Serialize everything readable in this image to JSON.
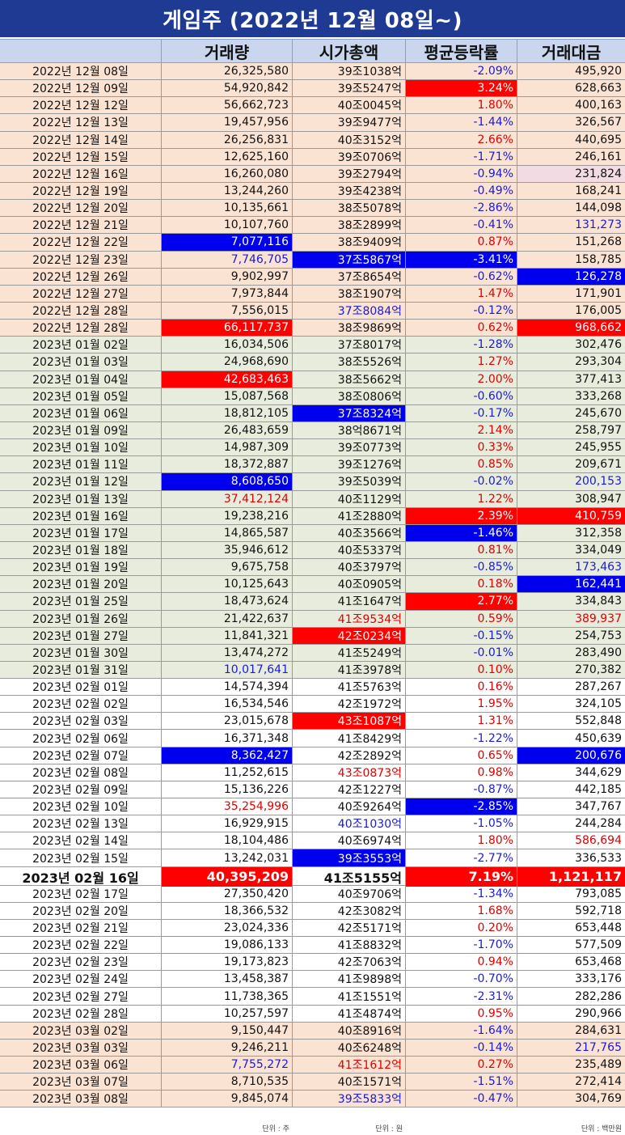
{
  "title": "게임주 (2022년 12월 08일~)",
  "headers": [
    "",
    "거래량",
    "시가총액",
    "평균등락률",
    "거래대금"
  ],
  "footer": [
    "",
    "단위 : 주",
    "단위 : 원",
    "",
    "단위 : 백만원"
  ],
  "rows": [
    {
      "date": "2022년 12월 08일",
      "vol": "26,325,580",
      "cap": "39조1038억",
      "rate": "-2.09%",
      "amt": "495,920",
      "group": "g1",
      "rate_style": "t-blue"
    },
    {
      "date": "2022년 12월 09일",
      "vol": "54,920,842",
      "cap": "39조5247억",
      "rate": "3.24%",
      "amt": "628,663",
      "group": "g1",
      "rate_style": "hl-red"
    },
    {
      "date": "2022년 12월 12일",
      "vol": "56,662,723",
      "cap": "40조0045억",
      "rate": "1.80%",
      "amt": "400,163",
      "group": "g1",
      "rate_style": "t-red"
    },
    {
      "date": "2022년 12월 13일",
      "vol": "19,457,956",
      "cap": "39조9477억",
      "rate": "-1.44%",
      "amt": "326,567",
      "group": "g1",
      "rate_style": "t-blue"
    },
    {
      "date": "2022년 12월 14일",
      "vol": "26,256,831",
      "cap": "40조3152억",
      "rate": "2.66%",
      "amt": "440,695",
      "group": "g1",
      "rate_style": "t-red"
    },
    {
      "date": "2022년 12월 15일",
      "vol": "12,625,160",
      "cap": "39조0706억",
      "rate": "-1.71%",
      "amt": "246,161",
      "group": "g1",
      "rate_style": "t-blue"
    },
    {
      "date": "2022년 12월 16일",
      "vol": "16,260,080",
      "cap": "39조2794억",
      "rate": "-0.94%",
      "amt": "231,824",
      "group": "g1",
      "rate_style": "t-blue",
      "amt_style": "hl-pink"
    },
    {
      "date": "2022년 12월 19일",
      "vol": "13,244,260",
      "cap": "39조4238억",
      "rate": "-0.49%",
      "amt": "168,241",
      "group": "g1",
      "rate_style": "t-blue"
    },
    {
      "date": "2022년 12월 20일",
      "vol": "10,135,661",
      "cap": "38조5078억",
      "rate": "-2.86%",
      "amt": "144,098",
      "group": "g1",
      "rate_style": "t-blue"
    },
    {
      "date": "2022년 12월 21일",
      "vol": "10,107,760",
      "cap": "38조2899억",
      "rate": "-0.41%",
      "amt": "131,273",
      "group": "g1",
      "rate_style": "t-blue",
      "amt_style": "t-blue"
    },
    {
      "date": "2022년 12월 22일",
      "vol": "7,077,116",
      "cap": "38조9409억",
      "rate": "0.87%",
      "amt": "151,268",
      "group": "g1",
      "rate_style": "t-red",
      "vol_style": "hl-blue"
    },
    {
      "date": "2022년 12월 23일",
      "vol": "7,746,705",
      "cap": "37조5867억",
      "rate": "-3.41%",
      "amt": "158,785",
      "group": "g1",
      "rate_style": "hl-blue",
      "vol_style": "t-blue",
      "cap_style": "hl-blue"
    },
    {
      "date": "2022년 12월 26일",
      "vol": "9,902,997",
      "cap": "37조8654억",
      "rate": "-0.62%",
      "amt": "126,278",
      "group": "g1",
      "rate_style": "t-blue",
      "amt_style": "hl-blue"
    },
    {
      "date": "2022년 12월 27일",
      "vol": "7,973,844",
      "cap": "38조1907억",
      "rate": "1.47%",
      "amt": "171,901",
      "group": "g1",
      "rate_style": "t-red"
    },
    {
      "date": "2022년 12월 28일",
      "vol": "7,556,015",
      "cap": "37조8084억",
      "rate": "-0.12%",
      "amt": "176,005",
      "group": "g1",
      "rate_style": "t-blue",
      "cap_style": "t-blue"
    },
    {
      "date": "2022년 12월 28일",
      "vol": "66,117,737",
      "cap": "38조9869억",
      "rate": "0.62%",
      "amt": "968,662",
      "group": "g1",
      "rate_style": "t-red",
      "vol_style": "hl-red",
      "amt_style": "hl-red"
    },
    {
      "date": "2023년 01월 02일",
      "vol": "16,034,506",
      "cap": "37조8017억",
      "rate": "-1.28%",
      "amt": "302,476",
      "group": "g2",
      "rate_style": "t-blue"
    },
    {
      "date": "2023년 01월 03일",
      "vol": "24,968,690",
      "cap": "38조5526억",
      "rate": "1.27%",
      "amt": "293,304",
      "group": "g2",
      "rate_style": "t-red"
    },
    {
      "date": "2023년 01월 04일",
      "vol": "42,683,463",
      "cap": "38조5662억",
      "rate": "2.00%",
      "amt": "377,413",
      "group": "g2",
      "rate_style": "t-red",
      "vol_style": "hl-red"
    },
    {
      "date": "2023년 01월 05일",
      "vol": "15,087,568",
      "cap": "38조0806억",
      "rate": "-0.60%",
      "amt": "333,268",
      "group": "g2",
      "rate_style": "t-blue"
    },
    {
      "date": "2023년 01월 06일",
      "vol": "18,812,105",
      "cap": "37조8324억",
      "rate": "-0.17%",
      "amt": "245,670",
      "group": "g2",
      "rate_style": "t-blue",
      "cap_style": "hl-blue"
    },
    {
      "date": "2023년 01월 09일",
      "vol": "26,483,659",
      "cap": "38억8671억",
      "rate": "2.14%",
      "amt": "258,797",
      "group": "g2",
      "rate_style": "t-red"
    },
    {
      "date": "2023년 01월 10일",
      "vol": "14,987,309",
      "cap": "39조0773억",
      "rate": "0.33%",
      "amt": "245,955",
      "group": "g2",
      "rate_style": "t-red"
    },
    {
      "date": "2023년 01월 11일",
      "vol": "18,372,887",
      "cap": "39조1276억",
      "rate": "0.85%",
      "amt": "209,671",
      "group": "g2",
      "rate_style": "t-red"
    },
    {
      "date": "2023년 01월 12일",
      "vol": "8,608,650",
      "cap": "39조5039억",
      "rate": "-0.02%",
      "amt": "200,153",
      "group": "g2",
      "rate_style": "t-blue",
      "vol_style": "hl-blue",
      "amt_style": "t-blue"
    },
    {
      "date": "2023년 01월 13일",
      "vol": "37,412,124",
      "cap": "40조1129억",
      "rate": "1.22%",
      "amt": "308,947",
      "group": "g2",
      "rate_style": "t-red",
      "vol_style": "t-red"
    },
    {
      "date": "2023년 01월 16일",
      "vol": "19,238,216",
      "cap": "41조2880억",
      "rate": "2.39%",
      "amt": "410,759",
      "group": "g2",
      "rate_style": "hl-red",
      "amt_style": "hl-red"
    },
    {
      "date": "2023년 01월 17일",
      "vol": "14,865,587",
      "cap": "40조3566억",
      "rate": "-1.46%",
      "amt": "312,358",
      "group": "g2",
      "rate_style": "hl-blue"
    },
    {
      "date": "2023년 01월 18일",
      "vol": "35,946,612",
      "cap": "40조5337억",
      "rate": "0.81%",
      "amt": "334,049",
      "group": "g2",
      "rate_style": "t-red"
    },
    {
      "date": "2023년 01월 19일",
      "vol": "9,675,758",
      "cap": "40조3797억",
      "rate": "-0.85%",
      "amt": "173,463",
      "group": "g2",
      "rate_style": "t-blue",
      "amt_style": "t-blue"
    },
    {
      "date": "2023년 01월 20일",
      "vol": "10,125,643",
      "cap": "40조0905억",
      "rate": "0.18%",
      "amt": "162,441",
      "group": "g2",
      "rate_style": "t-red",
      "amt_style": "hl-blue"
    },
    {
      "date": "2023년 01월 25일",
      "vol": "18,473,624",
      "cap": "41조1647억",
      "rate": "2.77%",
      "amt": "334,843",
      "group": "g2",
      "rate_style": "hl-red"
    },
    {
      "date": "2023년 01월 26일",
      "vol": "21,422,637",
      "cap": "41조9534억",
      "rate": "0.59%",
      "amt": "389,937",
      "group": "g2",
      "rate_style": "t-red",
      "cap_style": "t-red",
      "amt_style": "t-red"
    },
    {
      "date": "2023년 01월 27일",
      "vol": "11,841,321",
      "cap": "42조0234억",
      "rate": "-0.15%",
      "amt": "254,753",
      "group": "g2",
      "rate_style": "t-blue",
      "cap_style": "hl-red"
    },
    {
      "date": "2023년 01월 30일",
      "vol": "13,474,272",
      "cap": "41조5249억",
      "rate": "-0.01%",
      "amt": "283,490",
      "group": "g2",
      "rate_style": "t-blue"
    },
    {
      "date": "2023년 01월 31일",
      "vol": "10,017,641",
      "cap": "41조3978억",
      "rate": "0.10%",
      "amt": "270,382",
      "group": "g2",
      "rate_style": "t-red",
      "vol_style": "t-blue"
    },
    {
      "date": "2023년 02월 01일",
      "vol": "14,574,394",
      "cap": "41조5763억",
      "rate": "0.16%",
      "amt": "287,267",
      "group": "g3",
      "rate_style": "t-red"
    },
    {
      "date": "2023년 02월 02일",
      "vol": "16,534,546",
      "cap": "42조1972억",
      "rate": "1.95%",
      "amt": "324,105",
      "group": "g3",
      "rate_style": "t-red"
    },
    {
      "date": "2023년 02월 03일",
      "vol": "23,015,678",
      "cap": "43조1087억",
      "rate": "1.31%",
      "amt": "552,848",
      "group": "g3",
      "rate_style": "t-red",
      "cap_style": "hl-red"
    },
    {
      "date": "2023년 02월 06일",
      "vol": "16,371,348",
      "cap": "41조8429억",
      "rate": "-1.22%",
      "amt": "450,639",
      "group": "g3",
      "rate_style": "t-blue"
    },
    {
      "date": "2023년 02월 07일",
      "vol": "8,362,427",
      "cap": "42조2892억",
      "rate": "0.65%",
      "amt": "200,676",
      "group": "g3",
      "rate_style": "t-red",
      "vol_style": "hl-blue",
      "amt_style": "hl-blue"
    },
    {
      "date": "2023년 02월 08일",
      "vol": "11,252,615",
      "cap": "43조0873억",
      "rate": "0.98%",
      "amt": "344,629",
      "group": "g3",
      "rate_style": "t-red",
      "cap_style": "t-red"
    },
    {
      "date": "2023년 02월 09일",
      "vol": "15,136,226",
      "cap": "42조1227억",
      "rate": "-0.87%",
      "amt": "442,185",
      "group": "g3",
      "rate_style": "t-blue"
    },
    {
      "date": "2023년 02월 10일",
      "vol": "35,254,996",
      "cap": "40조9264억",
      "rate": "-2.85%",
      "amt": "347,767",
      "group": "g3",
      "rate_style": "hl-blue",
      "vol_style": "t-red"
    },
    {
      "date": "2023년 02월 13일",
      "vol": "16,929,915",
      "cap": "40조1030억",
      "rate": "-1.05%",
      "amt": "244,284",
      "group": "g3",
      "rate_style": "t-blue",
      "cap_style": "t-blue"
    },
    {
      "date": "2023년 02월 14일",
      "vol": "18,104,486",
      "cap": "40조6974억",
      "rate": "1.80%",
      "amt": "586,694",
      "group": "g3",
      "rate_style": "t-red",
      "amt_style": "t-red"
    },
    {
      "date": "2023년 02월 15일",
      "vol": "13,242,031",
      "cap": "39조3553억",
      "rate": "-2.77%",
      "amt": "336,533",
      "group": "g3",
      "rate_style": "t-blue",
      "cap_style": "hl-blue"
    },
    {
      "date": "2023년 02월 16일",
      "vol": "40,395,209",
      "cap": "41조5155억",
      "rate": "7.19%",
      "amt": "1,121,117",
      "group": "g3",
      "big": true,
      "rate_style": "hl-red",
      "vol_style": "hl-red",
      "amt_style": "hl-red"
    },
    {
      "date": "2023년 02월 17일",
      "vol": "27,350,420",
      "cap": "40조9706억",
      "rate": "-1.34%",
      "amt": "793,085",
      "group": "g3",
      "rate_style": "t-blue"
    },
    {
      "date": "2023년 02월 20일",
      "vol": "18,366,532",
      "cap": "42조3082억",
      "rate": "1.68%",
      "amt": "592,718",
      "group": "g3",
      "rate_style": "t-red"
    },
    {
      "date": "2023년 02월 21일",
      "vol": "23,024,336",
      "cap": "42조5171억",
      "rate": "0.20%",
      "amt": "653,448",
      "group": "g3",
      "rate_style": "t-red"
    },
    {
      "date": "2023년 02월 22일",
      "vol": "19,086,133",
      "cap": "41조8832억",
      "rate": "-1.70%",
      "amt": "577,509",
      "group": "g3",
      "rate_style": "t-blue"
    },
    {
      "date": "2023년 02월 23일",
      "vol": "19,173,823",
      "cap": "42조7063억",
      "rate": "0.94%",
      "amt": "653,468",
      "group": "g3",
      "rate_style": "t-red"
    },
    {
      "date": "2023년 02월 24일",
      "vol": "13,458,387",
      "cap": "41조9898억",
      "rate": "-0.70%",
      "amt": "333,176",
      "group": "g3",
      "rate_style": "t-blue"
    },
    {
      "date": "2023년 02월 27일",
      "vol": "11,738,365",
      "cap": "41조1551억",
      "rate": "-2.31%",
      "amt": "282,286",
      "group": "g3",
      "rate_style": "t-blue"
    },
    {
      "date": "2023년 02월 28일",
      "vol": "10,257,597",
      "cap": "41조4874억",
      "rate": "0.95%",
      "amt": "290,966",
      "group": "g3",
      "rate_style": "t-red"
    },
    {
      "date": "2023년 03월 02일",
      "vol": "9,150,447",
      "cap": "40조8916억",
      "rate": "-1.64%",
      "amt": "284,631",
      "group": "g4",
      "rate_style": "t-blue"
    },
    {
      "date": "2023년 03월 03일",
      "vol": "9,246,211",
      "cap": "40조6248억",
      "rate": "-0.14%",
      "amt": "217,765",
      "group": "g4",
      "rate_style": "t-blue",
      "amt_style": "t-blue"
    },
    {
      "date": "2023년 03월 06일",
      "vol": "7,755,272",
      "cap": "41조1612억",
      "rate": "0.27%",
      "amt": "235,489",
      "group": "g4",
      "rate_style": "t-red",
      "vol_style": "t-blue",
      "cap_style": "t-red"
    },
    {
      "date": "2023년 03월 07일",
      "vol": "8,710,535",
      "cap": "40조1571억",
      "rate": "-1.51%",
      "amt": "272,414",
      "group": "g4",
      "rate_style": "t-blue"
    },
    {
      "date": "2023년 03월 08일",
      "vol": "9,845,074",
      "cap": "39조5833억",
      "rate": "-0.47%",
      "amt": "304,769",
      "group": "g4",
      "rate_style": "t-blue",
      "cap_style": "t-blue"
    }
  ]
}
